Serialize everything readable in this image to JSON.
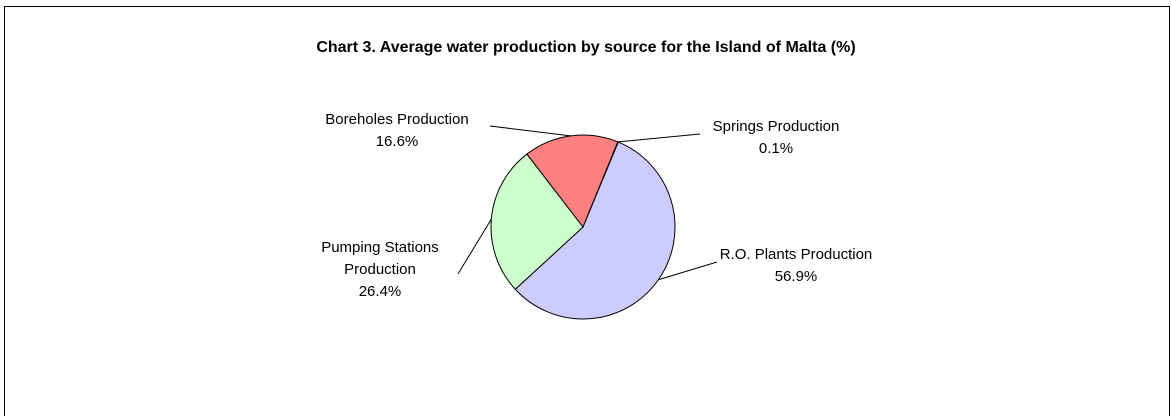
{
  "chart_data": {
    "type": "pie",
    "title": "Chart 3.  Average water production by source for the Island of Malta (%)",
    "slices": [
      {
        "label_lines": [
          "Springs Production"
        ],
        "value": 0.1,
        "value_label": "0.1%",
        "color": "#ffffcc"
      },
      {
        "label_lines": [
          "R.O. Plants Production"
        ],
        "value": 56.9,
        "value_label": "56.9%",
        "color": "#ccccff"
      },
      {
        "label_lines": [
          "Pumping Stations",
          "Production"
        ],
        "value": 26.4,
        "value_label": "26.4%",
        "color": "#ccffcc"
      },
      {
        "label_lines": [
          "Boreholes Production"
        ],
        "value": 16.6,
        "value_label": "16.6%",
        "color": "#ff8080"
      }
    ]
  }
}
